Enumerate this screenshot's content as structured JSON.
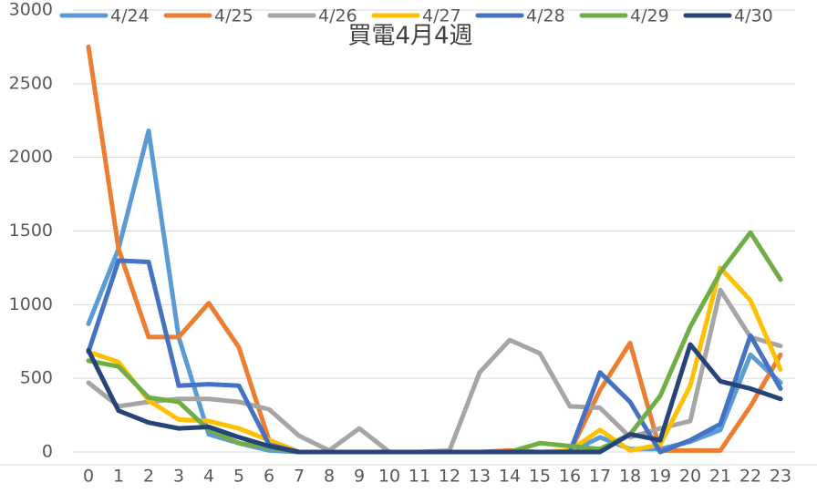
{
  "chart_data": {
    "type": "line",
    "title": "買電4月4週",
    "categories": [
      "0",
      "1",
      "2",
      "3",
      "4",
      "5",
      "6",
      "7",
      "8",
      "9",
      "10",
      "11",
      "12",
      "13",
      "14",
      "15",
      "16",
      "17",
      "18",
      "19",
      "20",
      "21",
      "22",
      "23"
    ],
    "ylim": [
      0,
      3000
    ],
    "yticks": [
      0,
      500,
      1000,
      1500,
      2000,
      2500,
      3000
    ],
    "grid": true,
    "legend": "top",
    "series": [
      {
        "name": "4/24",
        "color": "#5b9bd5",
        "values": [
          870,
          1380,
          2180,
          780,
          120,
          60,
          10,
          0,
          0,
          0,
          0,
          0,
          0,
          0,
          0,
          0,
          0,
          100,
          20,
          20,
          70,
          150,
          660,
          470
        ]
      },
      {
        "name": "4/25",
        "color": "#ed7d31",
        "values": [
          2750,
          1380,
          780,
          780,
          1010,
          710,
          80,
          0,
          0,
          0,
          0,
          0,
          0,
          0,
          10,
          0,
          0,
          420,
          740,
          10,
          10,
          10,
          310,
          660
        ]
      },
      {
        "name": "4/26",
        "color": "#a5a5a5",
        "values": [
          470,
          310,
          340,
          360,
          360,
          340,
          290,
          110,
          10,
          160,
          0,
          0,
          10,
          540,
          760,
          670,
          310,
          300,
          100,
          160,
          210,
          1100,
          780,
          720
        ]
      },
      {
        "name": "4/27",
        "color": "#ffc000",
        "values": [
          680,
          610,
          350,
          220,
          210,
          160,
          80,
          0,
          0,
          0,
          0,
          0,
          0,
          0,
          0,
          0,
          10,
          150,
          10,
          50,
          450,
          1250,
          1030,
          560
        ]
      },
      {
        "name": "4/28",
        "color": "#4472c4",
        "values": [
          680,
          1300,
          1290,
          450,
          460,
          450,
          50,
          0,
          0,
          0,
          0,
          0,
          0,
          0,
          0,
          0,
          0,
          540,
          340,
          0,
          80,
          190,
          790,
          430
        ]
      },
      {
        "name": "4/29",
        "color": "#70ad47",
        "values": [
          620,
          580,
          370,
          340,
          150,
          60,
          30,
          0,
          0,
          0,
          0,
          0,
          0,
          0,
          0,
          60,
          40,
          20,
          120,
          380,
          850,
          1220,
          1490,
          1170
        ]
      },
      {
        "name": "4/30",
        "color": "#264478",
        "values": [
          690,
          280,
          200,
          160,
          170,
          100,
          40,
          0,
          0,
          0,
          0,
          0,
          0,
          0,
          0,
          0,
          0,
          0,
          120,
          80,
          730,
          480,
          430,
          360
        ]
      }
    ]
  }
}
